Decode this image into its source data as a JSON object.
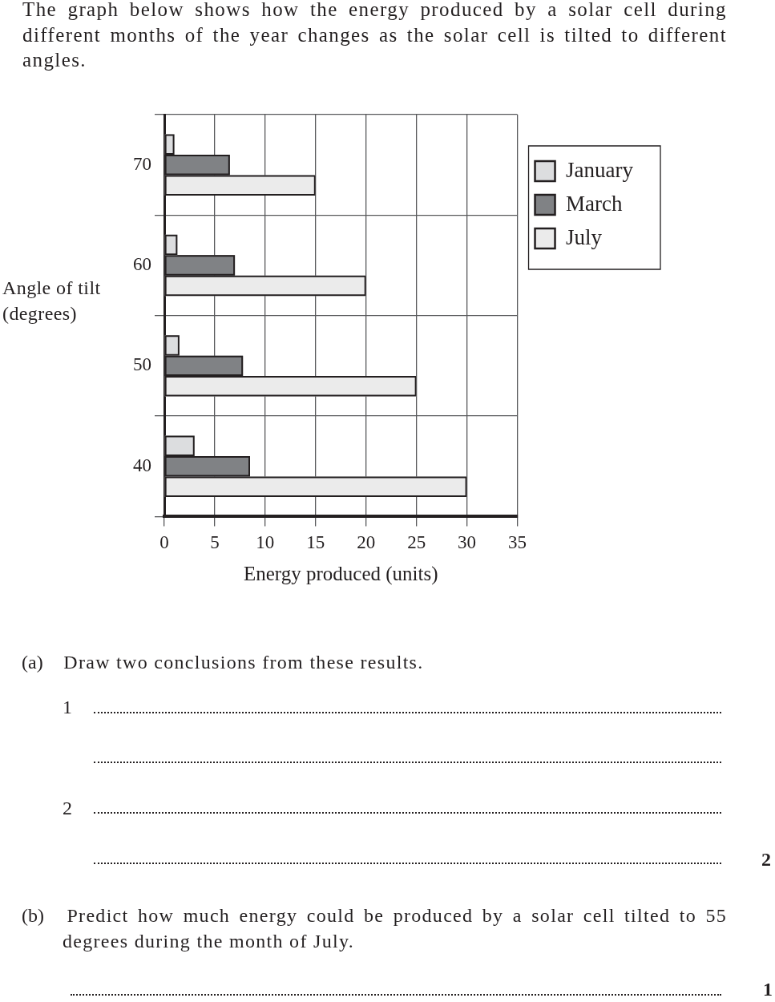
{
  "chart_data": {
    "type": "bar",
    "orientation": "horizontal",
    "title": "The graph below shows how the energy produced by a solar cell during different months of the year changes as the solar cell is tilted to different angles.",
    "categories": [
      "70",
      "60",
      "50",
      "40"
    ],
    "series": [
      {
        "name": "January",
        "color": "#dcdddf",
        "values": [
          1,
          1.3,
          1.5,
          3
        ]
      },
      {
        "name": "March",
        "color": "#808285",
        "values": [
          6.5,
          7,
          7.8,
          8.5
        ]
      },
      {
        "name": "July",
        "color": "#ebebeb",
        "values": [
          15,
          20,
          25,
          30
        ]
      }
    ],
    "xlabel": "Energy produced (units)",
    "ylabel": "Angle of tilt (degrees)",
    "xlim": [
      0,
      35
    ],
    "xticks": [
      0,
      5,
      10,
      15,
      20,
      25,
      30,
      35
    ],
    "grid": true,
    "legend": "top right",
    "annotations": [
      "(a) Draw two conclusions from these results.",
      "1",
      "2",
      "2",
      "(b) Predict how much energy could be produced by a solar cell tilted to 55 degrees during the month of July.",
      "1"
    ]
  }
}
